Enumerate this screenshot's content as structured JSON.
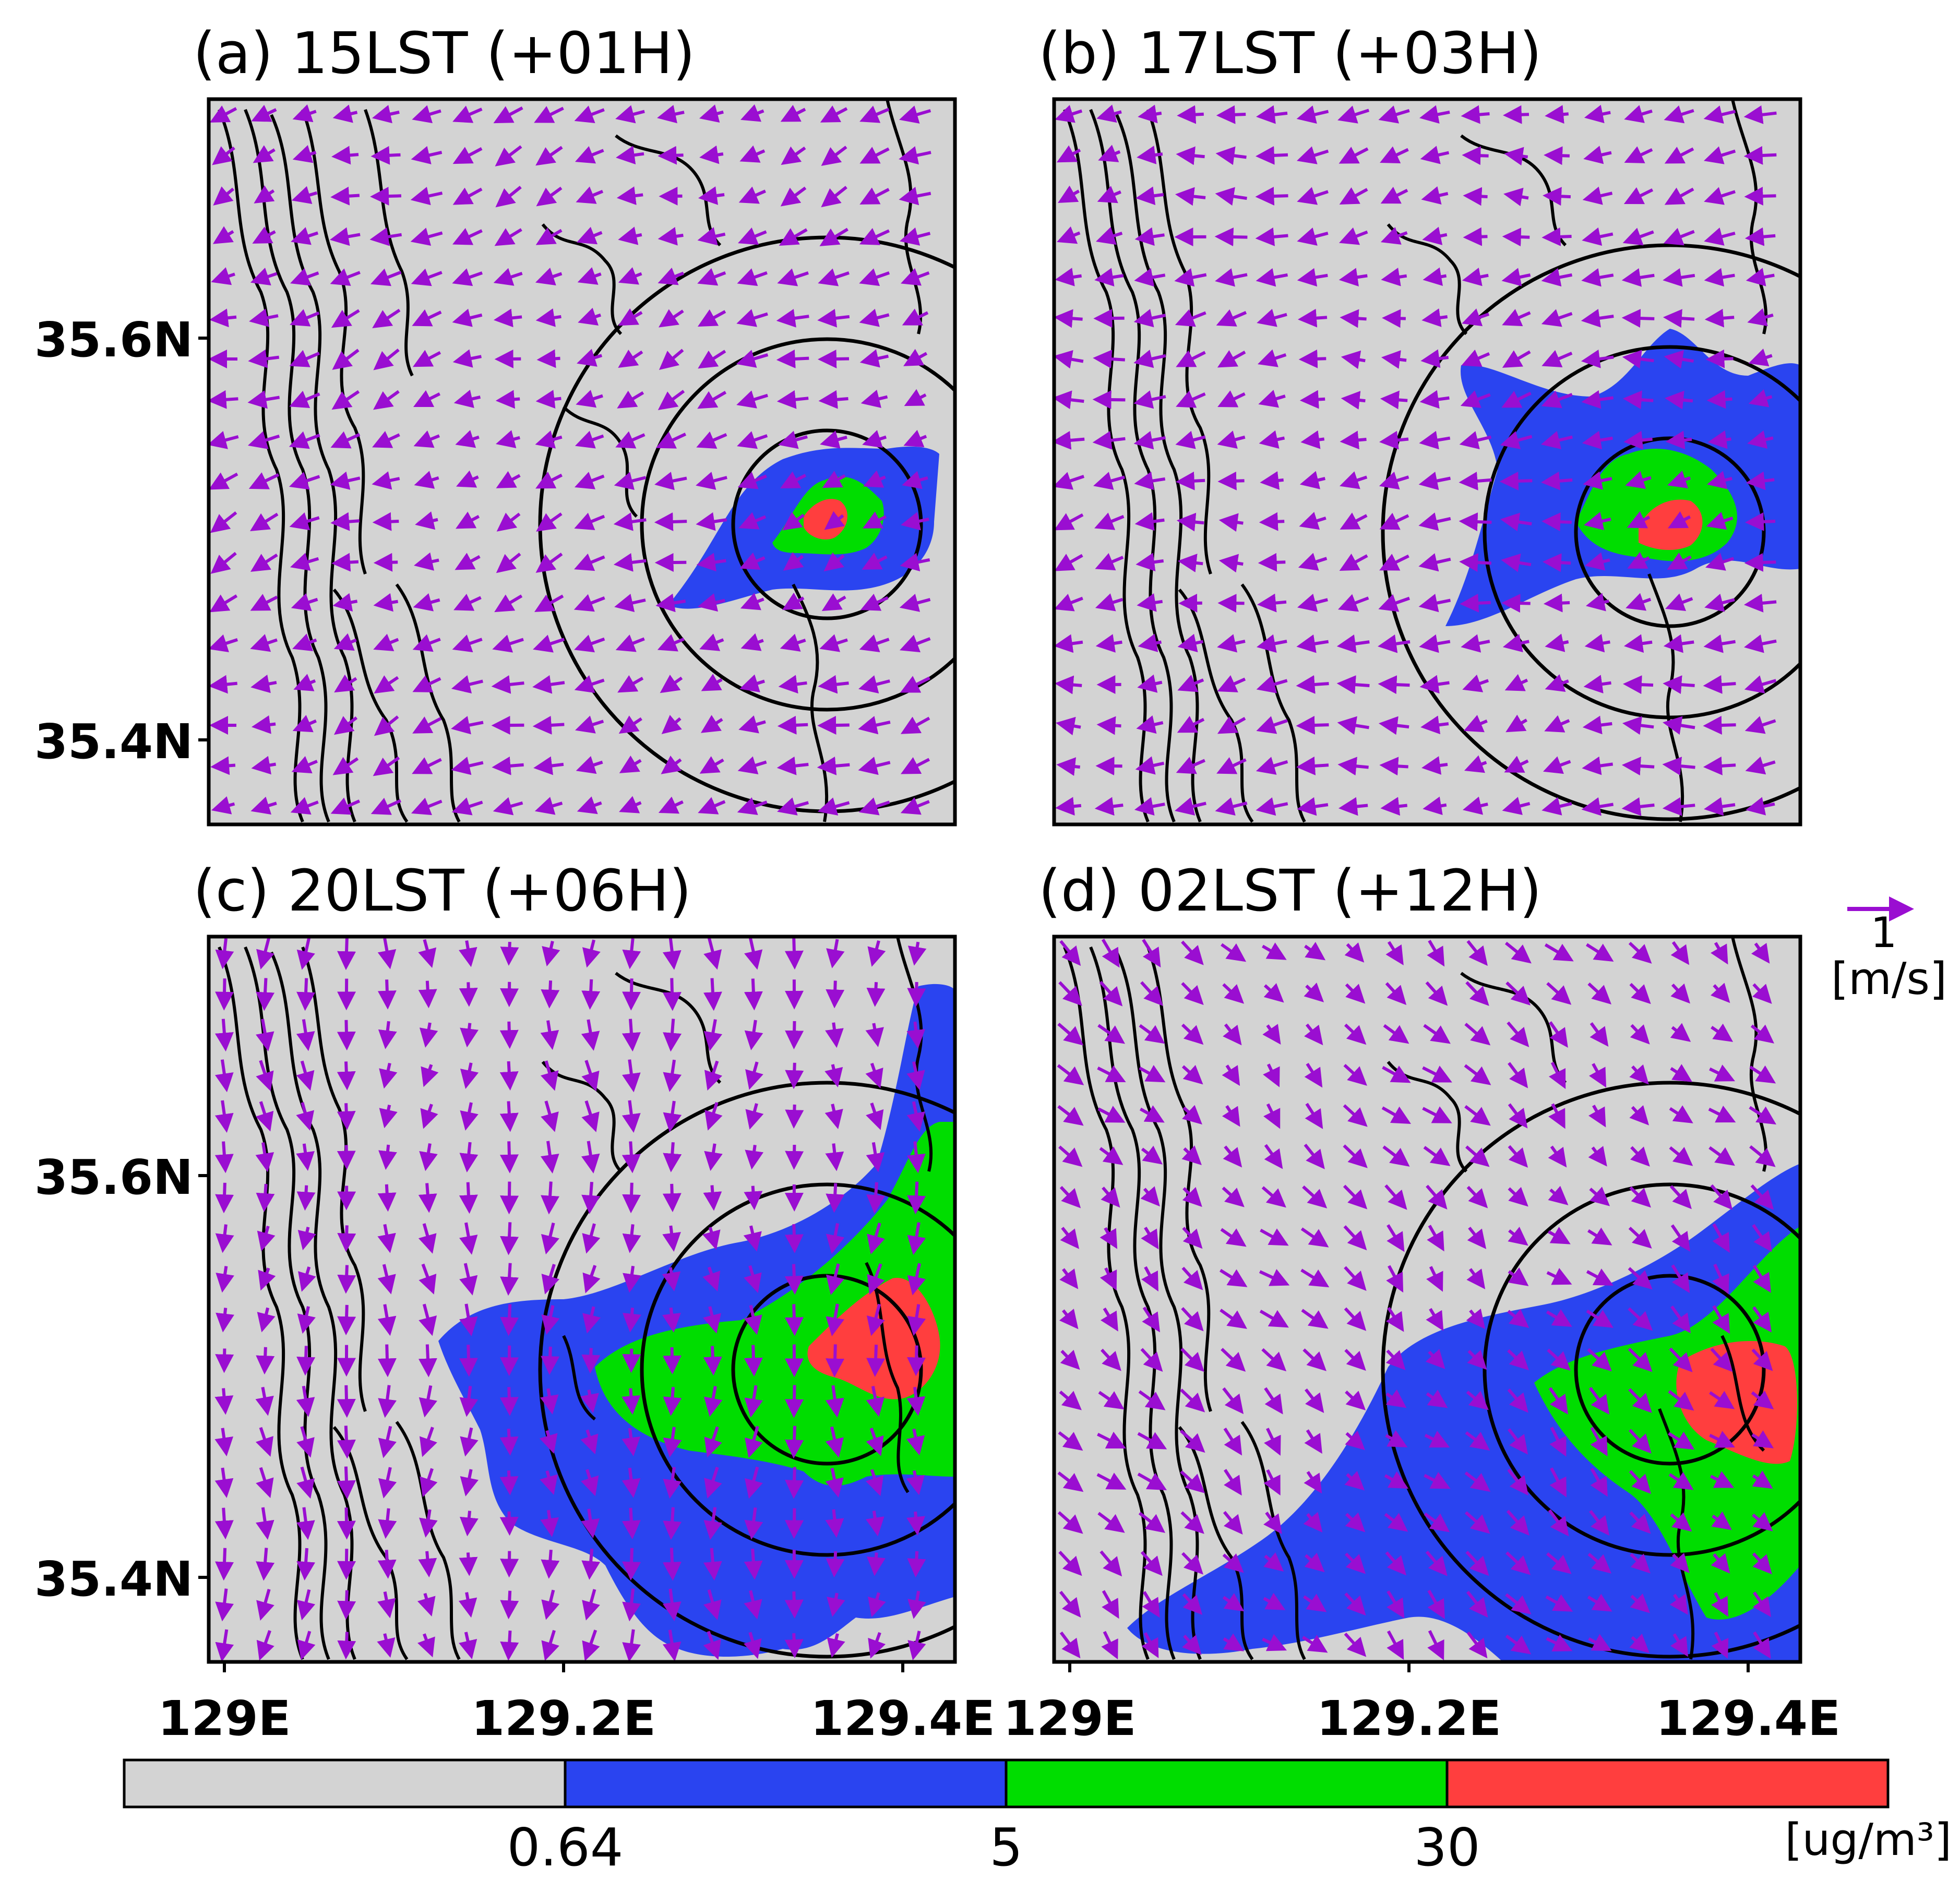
{
  "figure": {
    "panels": [
      {
        "id": "a",
        "title": "(a) 15LST (+01H)",
        "wind_dir_deg": 200
      },
      {
        "id": "b",
        "title": "(b) 17LST (+03H)",
        "wind_dir_deg": 190
      },
      {
        "id": "c",
        "title": "(c) 20LST (+06H)",
        "wind_dir_deg": 270
      },
      {
        "id": "d",
        "title": "(d) 02LST (+12H)",
        "wind_dir_deg": 315
      }
    ],
    "y_ticks": [
      "35.6N",
      "35.4N"
    ],
    "x_ticks": [
      "129E",
      "129.2E",
      "129.4E"
    ],
    "vector_reference": {
      "value": "1",
      "unit": "[m/s]"
    },
    "colorbar": {
      "boundaries": [
        "0.64",
        "5",
        "30"
      ],
      "unit": "[ug/m³]",
      "colors": [
        "#d3d3d3",
        "#2a44f0",
        "#00dd00",
        "#ff3e3e"
      ]
    }
  },
  "colors": {
    "background": "#d3d3d3",
    "vector": "#9a0ed1",
    "contour": "#000000"
  }
}
